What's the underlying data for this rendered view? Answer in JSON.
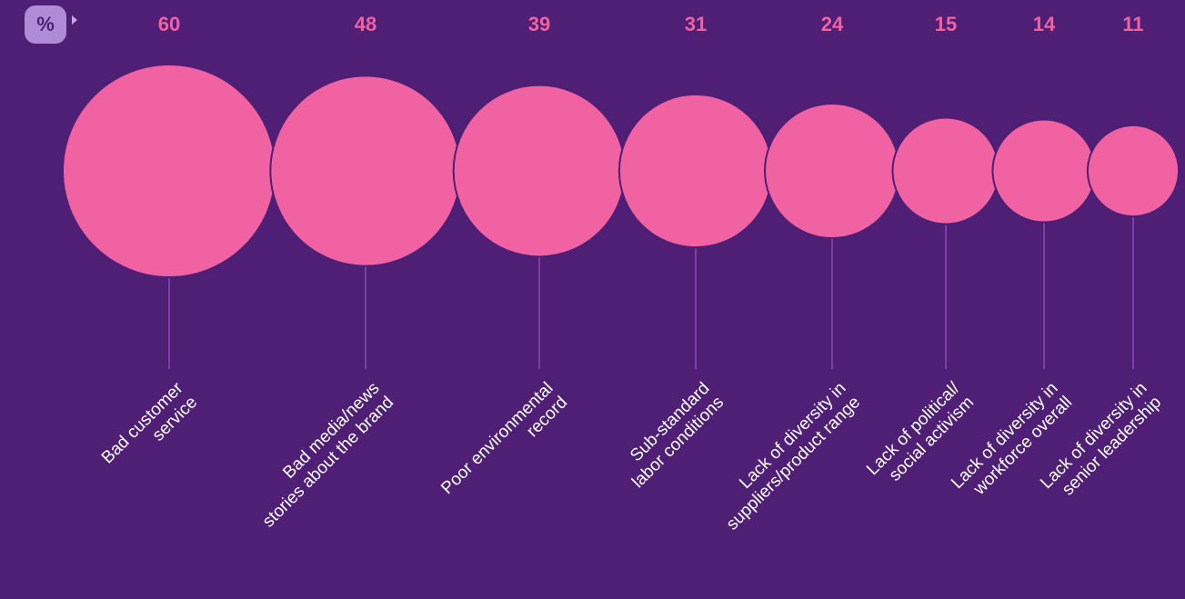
{
  "unit_badge": "%",
  "colors": {
    "background": "#4e1f75",
    "bubble": "#f062a2",
    "bubble_stroke": "#4e1f75",
    "stem": "#7d3ea8",
    "value_text": "#f062a2",
    "label_text": "#ffffff",
    "badge": "#b08bd6"
  },
  "chart_data": {
    "type": "bubble",
    "unit": "%",
    "categories": [
      [
        "Bad customer",
        "service"
      ],
      [
        "Bad media/news",
        "stories about the brand"
      ],
      [
        "Poor environmental",
        "record"
      ],
      [
        "Sub-standard",
        "labor conditions"
      ],
      [
        "Lack of diversity in",
        "suppliers/product range"
      ],
      [
        "Lack of political/",
        "social activism"
      ],
      [
        "Lack of diversity in",
        "workforce overall"
      ],
      [
        "Lack of diversity in",
        "senior leadership"
      ]
    ],
    "values": [
      60,
      48,
      39,
      31,
      24,
      15,
      14,
      11
    ]
  }
}
